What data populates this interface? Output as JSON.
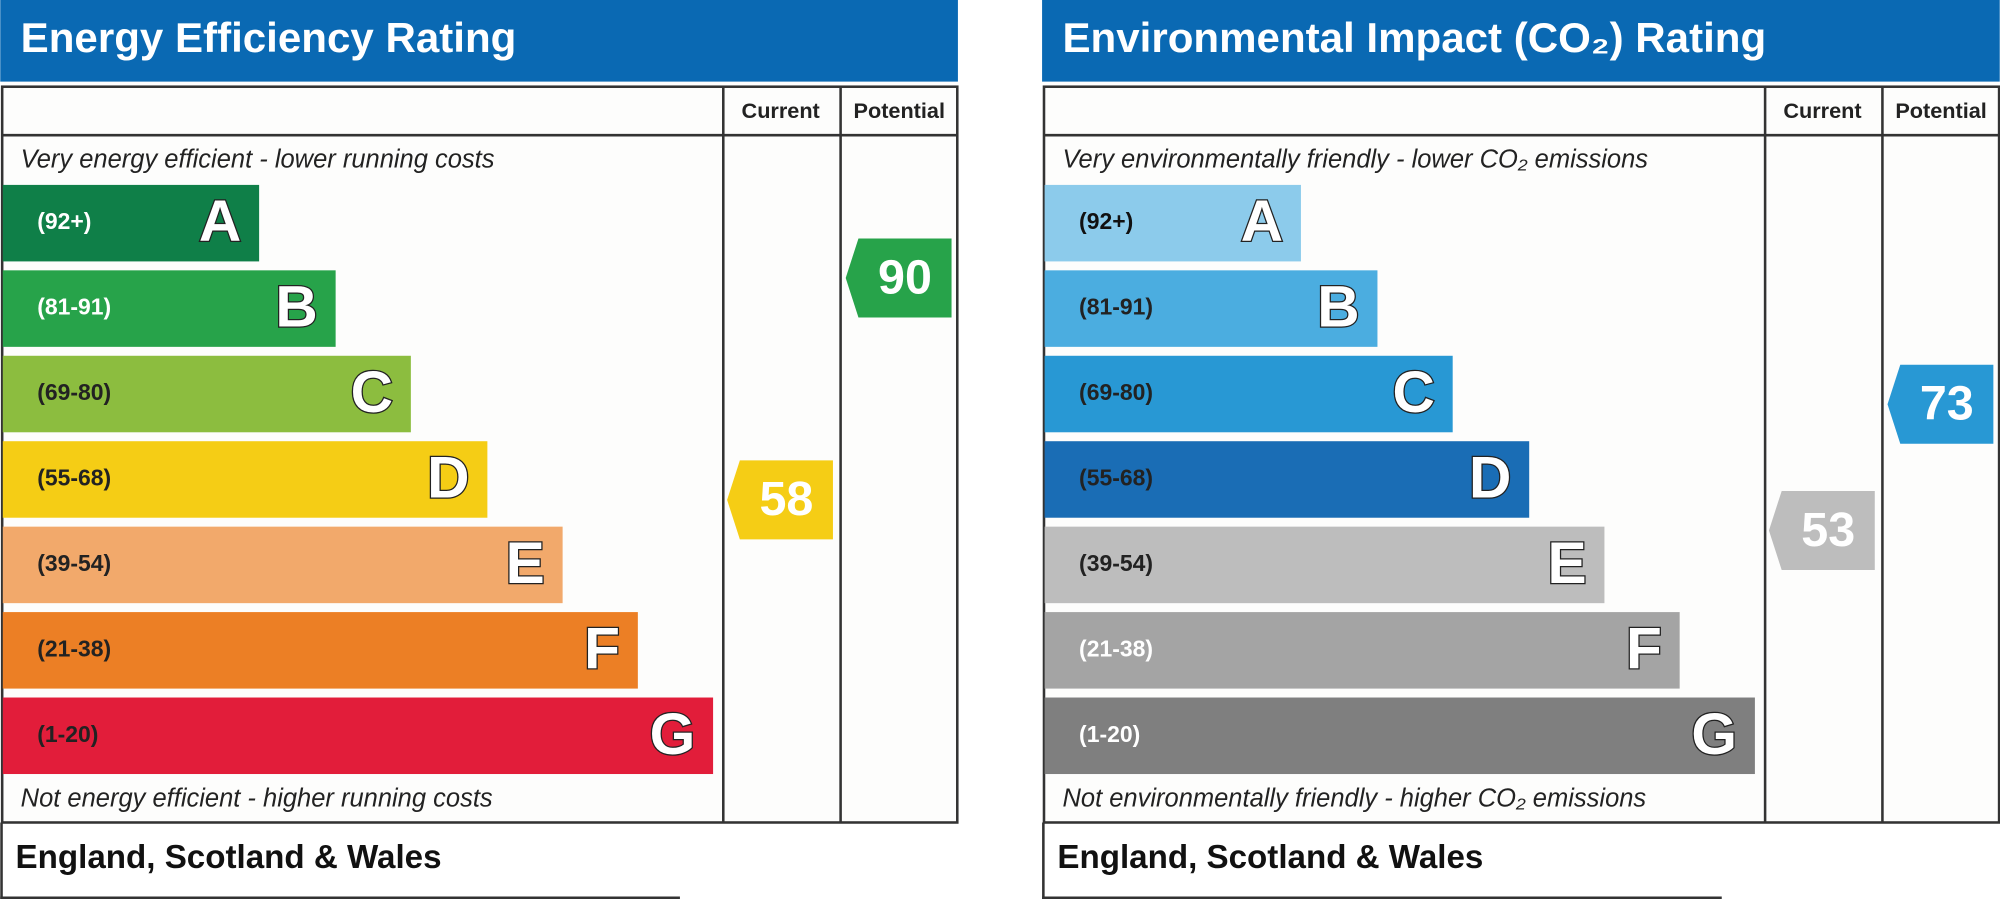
{
  "panels": [
    {
      "title": "Energy Efficiency Rating",
      "columns": [
        "Current",
        "Potential"
      ],
      "top_note": "Very energy efficient - lower running costs",
      "bands": [
        {
          "range": "(92+)",
          "letter": "A"
        },
        {
          "range": "(81-91)",
          "letter": "B"
        },
        {
          "range": "(69-80)",
          "letter": "C"
        },
        {
          "range": "(55-68)",
          "letter": "D"
        },
        {
          "range": "(39-54)",
          "letter": "E"
        },
        {
          "range": "(21-38)",
          "letter": "F"
        },
        {
          "range": "(1-20)",
          "letter": "G"
        }
      ],
      "bottom_note": "Not energy efficient - higher running costs",
      "current": "58",
      "potential": "90",
      "footer": "England, Scotland & Wales"
    },
    {
      "title": "Environmental Impact (CO₂) Rating",
      "columns": [
        "Current",
        "Potential"
      ],
      "top_note": "Very environmentally friendly - lower CO₂ emissions",
      "bands": [
        {
          "range": "(92+)",
          "letter": "A"
        },
        {
          "range": "(81-91)",
          "letter": "B"
        },
        {
          "range": "(69-80)",
          "letter": "C"
        },
        {
          "range": "(55-68)",
          "letter": "D"
        },
        {
          "range": "(39-54)",
          "letter": "E"
        },
        {
          "range": "(21-38)",
          "letter": "F"
        },
        {
          "range": "(1-20)",
          "letter": "G"
        }
      ],
      "bottom_note": "Not environmentally friendly - higher CO₂ emissions",
      "current": "53",
      "potential": "73",
      "footer": "England, Scotland & Wales"
    }
  ]
}
